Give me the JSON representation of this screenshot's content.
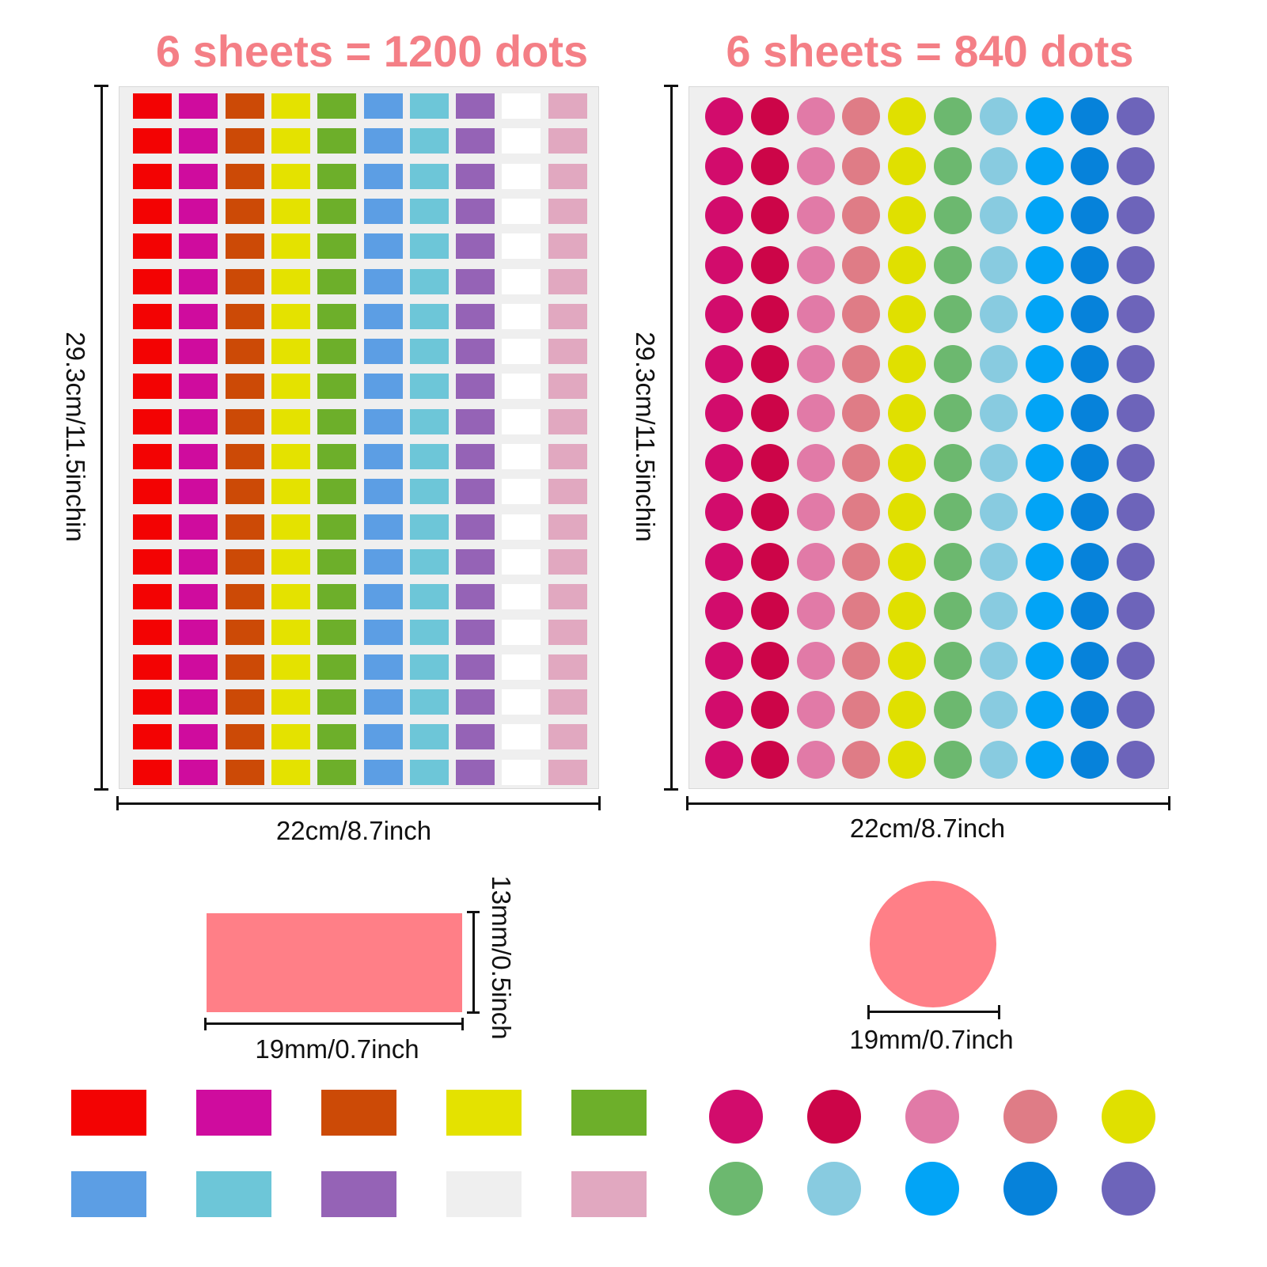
{
  "left_panel": {
    "heading": "6 sheets = 1200 dots",
    "width_label": "22cm/8.7inch",
    "height_label": "29.3cm/11.5inchin",
    "rows": 20,
    "colors": [
      "#f30303",
      "#cf0c9e",
      "#cc4a06",
      "#e4e200",
      "#6daf2a",
      "#5c9ee4",
      "#6dc6d8",
      "#9563b6",
      "#ffffff",
      "#e1a8c0"
    ]
  },
  "right_panel": {
    "heading": "6 sheets = 840 dots",
    "width_label": "22cm/8.7inch",
    "height_label": "29.3cm/11.5inchin",
    "rows": 14,
    "colors": [
      "#d20c6c",
      "#cc0548",
      "#e17aa7",
      "#df7c86",
      "#e0e000",
      "#6cb86f",
      "#88cbe0",
      "#02a4f6",
      "#0682da",
      "#6d64ba"
    ]
  },
  "rect_detail": {
    "color": "#ff7f87",
    "width_label": "19mm/0.7inch",
    "height_label": "13mm/0.5inch"
  },
  "circle_detail": {
    "color": "#ff7f87",
    "diameter_label": "19mm/0.7inch"
  },
  "rect_palette": [
    "#f30303",
    "#cf0c9e",
    "#cc4a06",
    "#e4e200",
    "#6daf2a",
    "#5c9ee4",
    "#6dc6d8",
    "#9563b6",
    "#efefef",
    "#e1a8c0"
  ],
  "circle_palette": [
    "#d20c6c",
    "#cc0548",
    "#e17aa7",
    "#df7c86",
    "#e0e000",
    "#6cb86f",
    "#88cbe0",
    "#02a4f6",
    "#0682da",
    "#6d64ba"
  ]
}
